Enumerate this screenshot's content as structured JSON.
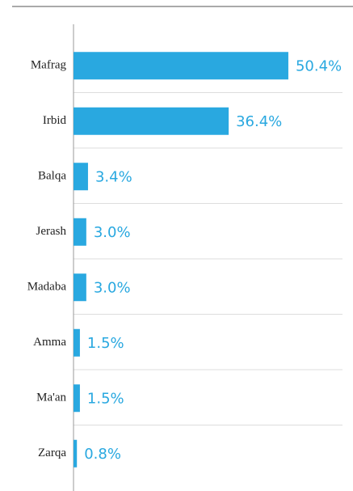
{
  "chart_data": {
    "type": "bar",
    "orientation": "horizontal",
    "categories": [
      "Mafrag",
      "Irbid",
      "Balqa",
      "Jerash",
      "Madaba",
      "Amma",
      "Ma'an",
      "Zarqa"
    ],
    "values": [
      50.4,
      36.4,
      3.4,
      3.0,
      3.0,
      1.5,
      1.5,
      0.8
    ],
    "value_labels": [
      "50.4%",
      "36.4%",
      "3.4%",
      "3.0%",
      "3.0%",
      "1.5%",
      "1.5%",
      "0.8%"
    ],
    "color": "#29a8e0",
    "xlim": [
      0,
      65
    ]
  }
}
